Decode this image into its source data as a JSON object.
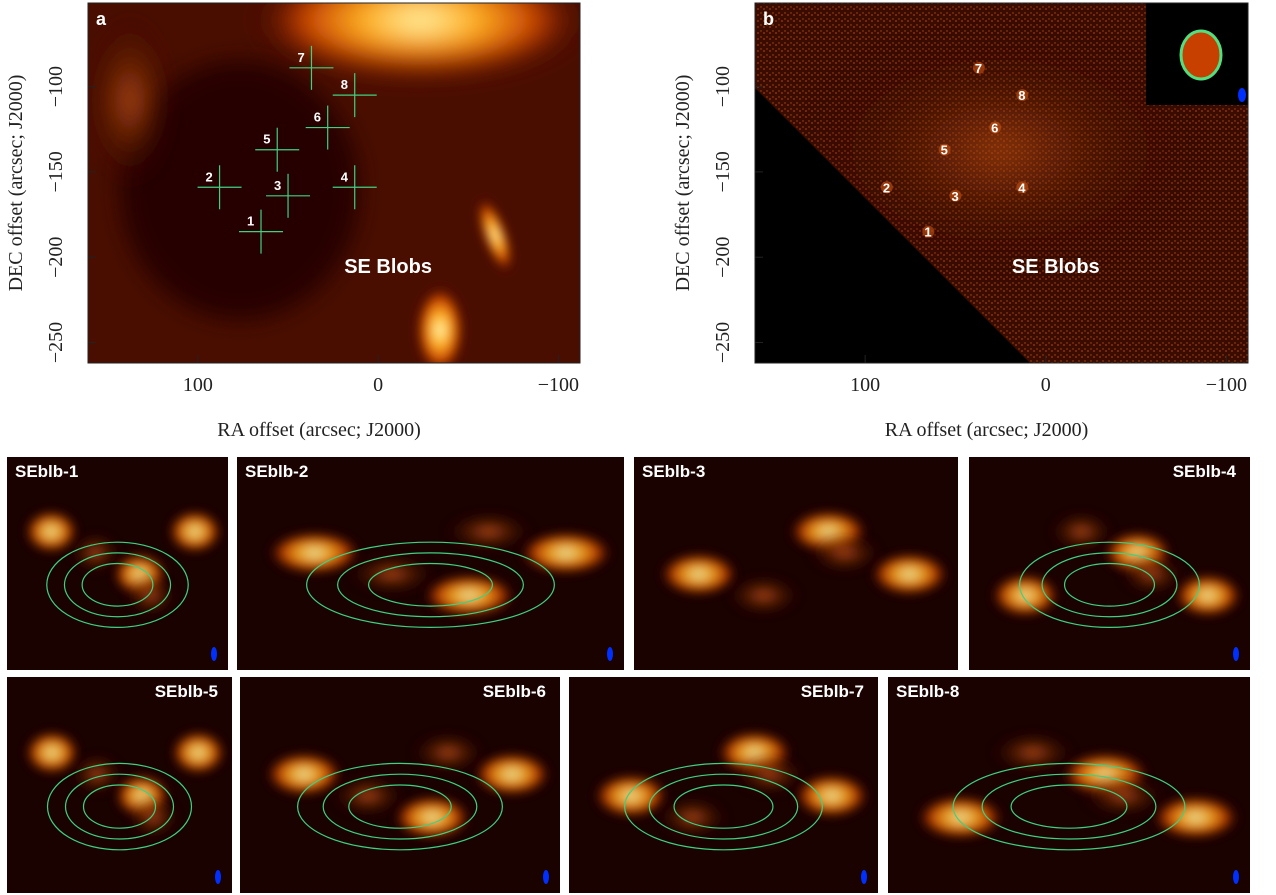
{
  "panels": [
    {
      "label": "a",
      "annotation": "SE Blobs",
      "x_label": "RA offset (arcsec; J2000)",
      "y_label": "DEC offset (arcsec; J2000)",
      "xlim": [
        161,
        -112
      ],
      "ylim": [
        -262,
        -51
      ],
      "xticks": [
        100,
        0,
        {
          "value": -100,
          "label": "−100"
        }
      ],
      "yticks": [
        {
          "value": -100,
          "label": "−100"
        },
        {
          "value": -150,
          "label": "−150"
        },
        {
          "value": -200,
          "label": "−200"
        },
        {
          "value": -250,
          "label": "−250"
        }
      ]
    },
    {
      "label": "b",
      "annotation": "SE Blobs",
      "x_label": "RA offset (arcsec; J2000)",
      "y_label": "DEC offset (arcsec; J2000)",
      "xlim": [
        161,
        -112
      ],
      "ylim": [
        -262,
        -51
      ],
      "xticks": [
        100,
        0,
        {
          "value": -100,
          "label": "−100"
        }
      ],
      "yticks": [
        {
          "value": -100,
          "label": "−100"
        },
        {
          "value": -150,
          "label": "−150"
        },
        {
          "value": -200,
          "label": "−200"
        },
        {
          "value": -250,
          "label": "−250"
        }
      ]
    }
  ],
  "blobs": [
    {
      "label": "1",
      "ra": 65,
      "dec": -185
    },
    {
      "label": "2",
      "ra": 88,
      "dec": -159
    },
    {
      "label": "3",
      "ra": 50,
      "dec": -164
    },
    {
      "label": "4",
      "ra": 13,
      "dec": -159
    },
    {
      "label": "5",
      "ra": 56,
      "dec": -137
    },
    {
      "label": "6",
      "ra": 28,
      "dec": -124
    },
    {
      "label": "7",
      "ra": 37,
      "dec": -89
    },
    {
      "label": "8",
      "ra": 13,
      "dec": -105
    }
  ],
  "thumbnails": [
    "SEblb-1",
    "SEblb-2",
    "SEblb-3",
    "SEblb-4",
    "SEblb-5",
    "SEblb-6",
    "SEblb-7",
    "SEblb-8"
  ]
}
